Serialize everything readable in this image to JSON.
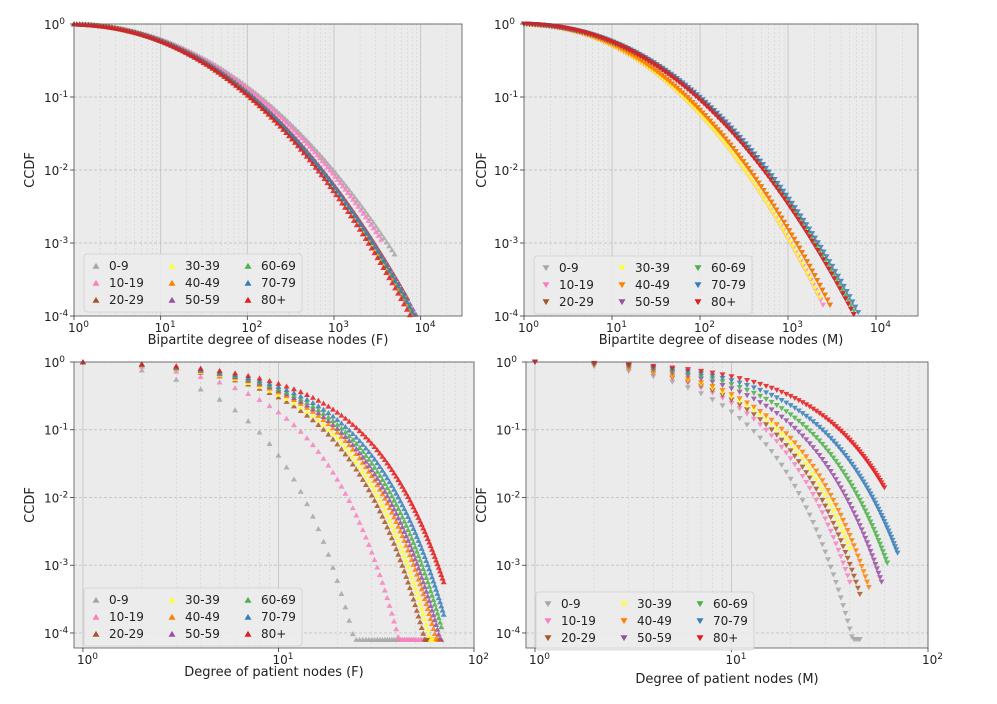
{
  "figure": {
    "description_none": ""
  },
  "groups": [
    {
      "name": "0-9",
      "color": "#a6a6a6"
    },
    {
      "name": "10-19",
      "color": "#f781bf"
    },
    {
      "name": "20-29",
      "color": "#a65628"
    },
    {
      "name": "30-39",
      "color": "#ffff33"
    },
    {
      "name": "40-49",
      "color": "#ff7f00"
    },
    {
      "name": "50-59",
      "color": "#984ea3"
    },
    {
      "name": "60-69",
      "color": "#4daf4a"
    },
    {
      "name": "70-79",
      "color": "#377eb8"
    },
    {
      "name": "80+",
      "color": "#e41a1c"
    }
  ],
  "chart_data": [
    {
      "type": "scatter",
      "scale": "log-log",
      "marker": "triangle-up",
      "xlabel": "Bipartite degree of disease nodes (F)",
      "ylabel": "CCDF",
      "xlim": [
        1,
        30000
      ],
      "ylim": [
        0.0001,
        1
      ],
      "xticks": [
        {
          "label": "10",
          "sup": "0",
          "v": 1
        },
        {
          "label": "10",
          "sup": "1",
          "v": 10
        },
        {
          "label": "10",
          "sup": "2",
          "v": 100
        },
        {
          "label": "10",
          "sup": "3",
          "v": 1000
        },
        {
          "label": "10",
          "sup": "4",
          "v": 10000
        }
      ],
      "yticks": [
        {
          "label": "10",
          "sup": "0",
          "v": 1
        },
        {
          "label": "10",
          "sup": "-1",
          "v": 0.1
        },
        {
          "label": "10",
          "sup": "-2",
          "v": 0.01
        },
        {
          "label": "10",
          "sup": "-3",
          "v": 0.001
        },
        {
          "label": "10",
          "sup": "-4",
          "v": 0.0001
        }
      ],
      "series": [
        {
          "name": "0-9",
          "xmax": 5000,
          "n": 3.0
        },
        {
          "name": "10-19",
          "xmax": 3500,
          "n": 2.8
        },
        {
          "name": "20-29",
          "xmax": 7000,
          "n": 3.6
        },
        {
          "name": "30-39",
          "xmax": 8000,
          "n": 3.8
        },
        {
          "name": "40-49",
          "xmax": 9000,
          "n": 3.9
        },
        {
          "name": "50-59",
          "xmax": 9500,
          "n": 3.9
        },
        {
          "name": "60-69",
          "xmax": 10000,
          "n": 4.0
        },
        {
          "name": "70-79",
          "xmax": 11000,
          "n": 4.1
        },
        {
          "name": "80+",
          "xmax": 12000,
          "n": 4.3
        }
      ]
    },
    {
      "type": "scatter",
      "scale": "log-log",
      "marker": "triangle-down",
      "xlabel": "Bipartite degree of disease nodes (M)",
      "ylabel": "CCDF",
      "xlim": [
        1,
        30000
      ],
      "ylim": [
        0.0001,
        1
      ],
      "xticks": [
        {
          "label": "10",
          "sup": "0",
          "v": 1
        },
        {
          "label": "10",
          "sup": "1",
          "v": 10
        },
        {
          "label": "10",
          "sup": "2",
          "v": 100
        },
        {
          "label": "10",
          "sup": "3",
          "v": 1000
        },
        {
          "label": "10",
          "sup": "4",
          "v": 10000
        }
      ],
      "yticks": [
        {
          "label": "10",
          "sup": "0",
          "v": 1
        },
        {
          "label": "10",
          "sup": "-1",
          "v": 0.1
        },
        {
          "label": "10",
          "sup": "-2",
          "v": 0.01
        },
        {
          "label": "10",
          "sup": "-3",
          "v": 0.001
        },
        {
          "label": "10",
          "sup": "-4",
          "v": 0.0001
        }
      ],
      "series": [
        {
          "name": "0-9",
          "xmax": 4500,
          "n": 3.6
        },
        {
          "name": "10-19",
          "xmax": 2500,
          "n": 3.7
        },
        {
          "name": "20-29",
          "xmax": 3000,
          "n": 3.7
        },
        {
          "name": "30-39",
          "xmax": 2300,
          "n": 3.6
        },
        {
          "name": "40-49",
          "xmax": 3000,
          "n": 3.7
        },
        {
          "name": "50-59",
          "xmax": 6000,
          "n": 3.9
        },
        {
          "name": "60-69",
          "xmax": 7000,
          "n": 4.0
        },
        {
          "name": "70-79",
          "xmax": 8500,
          "n": 4.1
        },
        {
          "name": "80+",
          "xmax": 6000,
          "n": 3.9
        }
      ]
    },
    {
      "type": "scatter",
      "scale": "log-log",
      "marker": "triangle-up",
      "xlabel": "Degree of patient nodes (F)",
      "ylabel": "CCDF",
      "xlim": [
        0.9,
        100
      ],
      "ylim": [
        6e-05,
        1
      ],
      "xticks": [
        {
          "label": "10",
          "sup": "0",
          "v": 1
        },
        {
          "label": "10",
          "sup": "1",
          "v": 10
        },
        {
          "label": "10",
          "sup": "2",
          "v": 100
        }
      ],
      "yticks": [
        {
          "label": "10",
          "sup": "0",
          "v": 1
        },
        {
          "label": "10",
          "sup": "-1",
          "v": 0.1
        },
        {
          "label": "10",
          "sup": "-2",
          "v": 0.01
        },
        {
          "label": "10",
          "sup": "-3",
          "v": 0.001
        },
        {
          "label": "10",
          "sup": "-4",
          "v": 0.0001
        }
      ],
      "series": [
        {
          "name": "0-9",
          "xmax": 50,
          "k": 3.2
        },
        {
          "name": "10-19",
          "xmax": 55,
          "k": 5.5
        },
        {
          "name": "20-29",
          "xmax": 68,
          "k": 7.5
        },
        {
          "name": "30-39",
          "xmax": 66,
          "k": 8.0
        },
        {
          "name": "40-49",
          "xmax": 66,
          "k": 8.6
        },
        {
          "name": "50-59",
          "xmax": 67,
          "k": 9.0
        },
        {
          "name": "60-69",
          "xmax": 68,
          "k": 9.5
        },
        {
          "name": "70-79",
          "xmax": 70,
          "k": 10.2
        },
        {
          "name": "80+",
          "xmax": 70,
          "k": 11.5
        }
      ]
    },
    {
      "type": "scatter",
      "scale": "log-log",
      "marker": "triangle-down",
      "xlabel": "Degree of patient nodes (M)",
      "ylabel": "CCDF",
      "xlim": [
        0.9,
        100
      ],
      "ylim": [
        6e-05,
        1
      ],
      "xticks": [
        {
          "label": "10",
          "sup": "0",
          "v": 1
        },
        {
          "label": "10",
          "sup": "1",
          "v": 10
        },
        {
          "label": "10",
          "sup": "2",
          "v": 100
        }
      ],
      "yticks": [
        {
          "label": "10",
          "sup": "0",
          "v": 1
        },
        {
          "label": "10",
          "sup": "-1",
          "v": 0.1
        },
        {
          "label": "10",
          "sup": "-2",
          "v": 0.01
        },
        {
          "label": "10",
          "sup": "-3",
          "v": 0.001
        },
        {
          "label": "10",
          "sup": "-4",
          "v": 0.0001
        }
      ],
      "series": [
        {
          "name": "0-9",
          "xmax": 45,
          "k": 5.5
        },
        {
          "name": "10-19",
          "xmax": 40,
          "k": 6.5
        },
        {
          "name": "20-29",
          "xmax": 45,
          "k": 7.0
        },
        {
          "name": "30-39",
          "xmax": 40,
          "k": 7.5
        },
        {
          "name": "40-49",
          "xmax": 50,
          "k": 8.0
        },
        {
          "name": "50-59",
          "xmax": 58,
          "k": 9.5
        },
        {
          "name": "60-69",
          "xmax": 62,
          "k": 11.0
        },
        {
          "name": "70-79",
          "xmax": 70,
          "k": 13.0
        },
        {
          "name": "80+",
          "xmax": 60,
          "k": 16.0
        }
      ]
    }
  ]
}
